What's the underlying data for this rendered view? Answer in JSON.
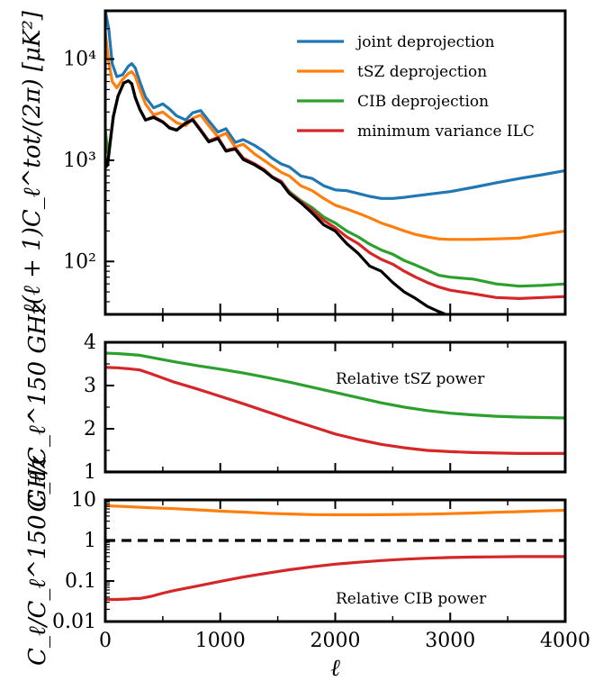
{
  "chart_data": [
    {
      "type": "line",
      "panel": "power spectrum",
      "ylabel": "ℓ(ℓ + 1)C_ℓ^tot/(2π)  [μK²]",
      "yscale": "log",
      "ylim": [
        30,
        30000
      ],
      "xlim": [
        0,
        4000
      ],
      "yticks": [
        {
          "value": 100,
          "label": "10²"
        },
        {
          "value": 1000,
          "label": "10³"
        },
        {
          "value": 10000,
          "label": "10⁴"
        }
      ],
      "legend_position": "top-right",
      "series": [
        {
          "name": "joint deprojection",
          "color": "#1f77b4",
          "x": [
            0,
            30,
            60,
            100,
            150,
            200,
            230,
            260,
            300,
            350,
            420,
            500,
            560,
            620,
            700,
            760,
            830,
            900,
            980,
            1050,
            1130,
            1200,
            1300,
            1380,
            1450,
            1530,
            1600,
            1700,
            1800,
            1900,
            2000,
            2100,
            2200,
            2300,
            2400,
            2500,
            2600,
            2800,
            3000,
            3200,
            3400,
            3600,
            3800,
            4000
          ],
          "y": [
            30000,
            20000,
            9000,
            6700,
            7000,
            8500,
            9000,
            8200,
            6000,
            4200,
            3300,
            3600,
            3200,
            2750,
            2500,
            2950,
            3100,
            2450,
            1900,
            2050,
            1500,
            1600,
            1400,
            1220,
            1050,
            920,
            860,
            700,
            660,
            560,
            510,
            500,
            470,
            440,
            420,
            420,
            430,
            460,
            490,
            540,
            600,
            660,
            720,
            790
          ]
        },
        {
          "name": "tSZ deprojection",
          "color": "#ff7f0e",
          "x": [
            0,
            30,
            60,
            100,
            150,
            200,
            230,
            260,
            300,
            350,
            420,
            500,
            560,
            620,
            700,
            760,
            830,
            900,
            980,
            1050,
            1130,
            1200,
            1300,
            1380,
            1450,
            1530,
            1600,
            1700,
            1800,
            1900,
            2000,
            2100,
            2200,
            2300,
            2400,
            2500,
            2600,
            2700,
            2800,
            2900,
            3000,
            3200,
            3400,
            3600,
            3800,
            4000
          ],
          "y": [
            18000,
            9500,
            6000,
            5200,
            6300,
            7200,
            7500,
            6800,
            5000,
            3600,
            2800,
            3000,
            2650,
            2350,
            2200,
            2600,
            2800,
            2200,
            1700,
            1850,
            1350,
            1440,
            1150,
            1000,
            880,
            760,
            700,
            560,
            500,
            420,
            360,
            330,
            300,
            270,
            240,
            220,
            200,
            185,
            175,
            167,
            165,
            165,
            167,
            170,
            185,
            200
          ]
        },
        {
          "name": "CIB deprojection",
          "color": "#2ca02c",
          "x": [
            0,
            20,
            40,
            70,
            110,
            160,
            200,
            230,
            260,
            300,
            350,
            420,
            500,
            560,
            620,
            700,
            760,
            830,
            900,
            980,
            1050,
            1130,
            1200,
            1300,
            1380,
            1450,
            1530,
            1600,
            1700,
            1800,
            1900,
            2000,
            2100,
            2200,
            2300,
            2400,
            2500,
            2600,
            2700,
            2800,
            2900,
            3000,
            3200,
            3400,
            3600,
            3800,
            4000
          ],
          "y": [
            2000,
            1200,
            1500,
            2700,
            4300,
            5800,
            6100,
            5700,
            4200,
            3200,
            2500,
            2700,
            2400,
            2100,
            2000,
            2350,
            2550,
            2000,
            1550,
            1680,
            1250,
            1320,
            1050,
            920,
            810,
            690,
            620,
            490,
            400,
            340,
            275,
            240,
            200,
            175,
            148,
            130,
            118,
            102,
            92,
            82,
            73,
            70,
            67,
            60,
            57,
            58,
            60
          ]
        },
        {
          "name": "minimum variance ILC",
          "color": "#d62728",
          "x": [
            0,
            20,
            40,
            70,
            110,
            160,
            200,
            230,
            260,
            300,
            350,
            420,
            500,
            560,
            620,
            700,
            760,
            830,
            900,
            980,
            1050,
            1130,
            1200,
            1300,
            1380,
            1450,
            1530,
            1600,
            1700,
            1800,
            1900,
            2000,
            2100,
            2200,
            2300,
            2400,
            2500,
            2600,
            2700,
            2800,
            2900,
            3000,
            3200,
            3400,
            3600,
            3800,
            4000
          ],
          "y": [
            900,
            950,
            1450,
            2700,
            4300,
            5800,
            6100,
            5700,
            4200,
            3200,
            2500,
            2700,
            2400,
            2100,
            2000,
            2350,
            2550,
            2000,
            1550,
            1680,
            1250,
            1320,
            1050,
            920,
            810,
            690,
            620,
            480,
            390,
            320,
            255,
            215,
            175,
            150,
            122,
            105,
            94,
            80,
            70,
            62,
            56,
            52,
            48,
            44,
            43,
            44,
            45
          ]
        },
        {
          "name": "",
          "color": "#000000",
          "x": [
            0,
            20,
            40,
            70,
            110,
            160,
            200,
            230,
            260,
            300,
            350,
            420,
            500,
            560,
            620,
            700,
            760,
            830,
            900,
            980,
            1050,
            1130,
            1200,
            1300,
            1380,
            1450,
            1530,
            1600,
            1700,
            1800,
            1900,
            2000,
            2100,
            2200,
            2300,
            2400,
            2500,
            2600,
            2700,
            2800,
            2900,
            2960
          ],
          "y": [
            850,
            900,
            1400,
            2700,
            4300,
            5800,
            6100,
            5700,
            4200,
            3200,
            2500,
            2650,
            2380,
            2080,
            1980,
            2320,
            2500,
            1960,
            1520,
            1640,
            1230,
            1290,
            1020,
            900,
            790,
            680,
            600,
            470,
            380,
            300,
            230,
            200,
            150,
            120,
            90,
            80,
            62,
            50,
            43,
            36,
            32,
            30
          ]
        }
      ]
    },
    {
      "type": "line",
      "panel": "relative tSZ",
      "ylabel": "C_ℓ/C_ℓ^150 GHz",
      "ylim": [
        1,
        4
      ],
      "xlim": [
        0,
        4000
      ],
      "yticks": [
        {
          "value": 1,
          "label": "1"
        },
        {
          "value": 2,
          "label": "2"
        },
        {
          "value": 3,
          "label": "3"
        },
        {
          "value": 4,
          "label": "4"
        }
      ],
      "annotation": "Relative tSZ power",
      "series": [
        {
          "name": "CIB deprojection",
          "color": "#2ca02c",
          "x": [
            0,
            100,
            200,
            300,
            400,
            600,
            800,
            1000,
            1200,
            1400,
            1600,
            1800,
            2000,
            2200,
            2400,
            2600,
            2800,
            3000,
            3200,
            3400,
            3600,
            3800,
            4000
          ],
          "y": [
            3.75,
            3.74,
            3.72,
            3.7,
            3.65,
            3.55,
            3.46,
            3.38,
            3.29,
            3.19,
            3.08,
            2.96,
            2.84,
            2.72,
            2.6,
            2.5,
            2.42,
            2.36,
            2.32,
            2.29,
            2.27,
            2.26,
            2.25
          ]
        },
        {
          "name": "minimum variance ILC",
          "color": "#d62728",
          "x": [
            0,
            100,
            200,
            300,
            400,
            600,
            800,
            1000,
            1200,
            1400,
            1600,
            1800,
            2000,
            2200,
            2400,
            2600,
            2800,
            3000,
            3200,
            3400,
            3600,
            3800,
            4000
          ],
          "y": [
            3.42,
            3.41,
            3.39,
            3.36,
            3.27,
            3.08,
            2.92,
            2.75,
            2.58,
            2.4,
            2.22,
            2.05,
            1.88,
            1.75,
            1.64,
            1.56,
            1.5,
            1.47,
            1.45,
            1.44,
            1.43,
            1.43,
            1.43
          ]
        },
        {
          "name": "",
          "color": "#000000",
          "x": [
            0,
            4000
          ],
          "y": [
            1,
            1
          ]
        }
      ]
    },
    {
      "type": "line",
      "panel": "relative CIB",
      "ylabel": "C_ℓ/C_ℓ^150 GHz",
      "xlabel": "ℓ",
      "yscale": "log",
      "ylim": [
        0.01,
        10
      ],
      "xlim": [
        0,
        4000
      ],
      "yticks": [
        {
          "value": 0.01,
          "label": "0.01"
        },
        {
          "value": 0.1,
          "label": "0.1"
        },
        {
          "value": 1,
          "label": "1"
        },
        {
          "value": 10,
          "label": "10"
        }
      ],
      "xticks": [
        0,
        1000,
        2000,
        3000,
        4000
      ],
      "annotation": "Relative CIB power",
      "series": [
        {
          "name": "tSZ deprojection",
          "color": "#ff7f0e",
          "x": [
            0,
            200,
            400,
            600,
            800,
            1000,
            1200,
            1400,
            1600,
            1800,
            2000,
            2200,
            2400,
            2600,
            2800,
            3000,
            3200,
            3400,
            3600,
            3800,
            4000
          ],
          "y": [
            7.2,
            6.8,
            6.4,
            6.1,
            5.7,
            5.3,
            5.0,
            4.7,
            4.5,
            4.35,
            4.3,
            4.3,
            4.32,
            4.38,
            4.45,
            4.6,
            4.75,
            4.95,
            5.15,
            5.35,
            5.55
          ]
        },
        {
          "name": "minimum variance ILC",
          "color": "#d62728",
          "x": [
            0,
            100,
            200,
            250,
            300,
            400,
            500,
            600,
            800,
            1000,
            1200,
            1400,
            1600,
            1800,
            2000,
            2200,
            2400,
            2600,
            2800,
            3000,
            3200,
            3400,
            3600,
            3800,
            4000
          ],
          "y": [
            0.035,
            0.035,
            0.036,
            0.037,
            0.037,
            0.042,
            0.05,
            0.058,
            0.075,
            0.098,
            0.125,
            0.155,
            0.19,
            0.225,
            0.26,
            0.29,
            0.32,
            0.345,
            0.365,
            0.38,
            0.39,
            0.395,
            0.4,
            0.4,
            0.4
          ]
        },
        {
          "name": "",
          "color": "#000000",
          "dash": true,
          "x": [
            0,
            4000
          ],
          "y": [
            1,
            1
          ]
        }
      ]
    }
  ]
}
